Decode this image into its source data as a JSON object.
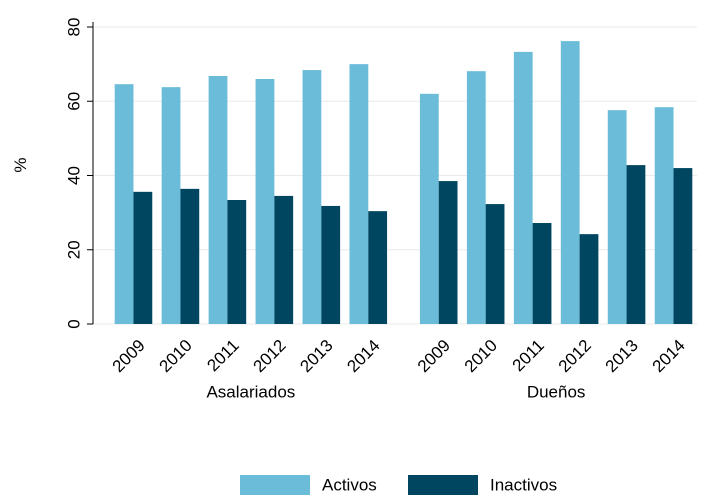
{
  "chart_data": {
    "type": "bar",
    "y_label": "%",
    "groups": [
      {
        "name": "Asalariados",
        "categories": [
          "2009",
          "2010",
          "2011",
          "2012",
          "2013",
          "2014"
        ]
      },
      {
        "name": "Dueños",
        "categories": [
          "2009",
          "2010",
          "2011",
          "2012",
          "2013",
          "2014"
        ]
      }
    ],
    "series": [
      {
        "name": "Activos",
        "color": "#6bbcd9",
        "values": [
          64.6,
          63.8,
          66.8,
          66.0,
          68.4,
          70.0,
          62.0,
          68.1,
          73.3,
          76.2,
          57.6,
          58.4
        ]
      },
      {
        "name": "Inactivos",
        "color": "#004660",
        "values": [
          35.6,
          36.4,
          33.4,
          34.5,
          31.8,
          30.4,
          38.5,
          32.3,
          27.2,
          24.2,
          42.8,
          42.0
        ]
      }
    ],
    "ylim": [
      0,
      80
    ],
    "yticks": [
      0,
      20,
      40,
      60,
      80
    ],
    "grid": true,
    "legend": "bottom"
  }
}
